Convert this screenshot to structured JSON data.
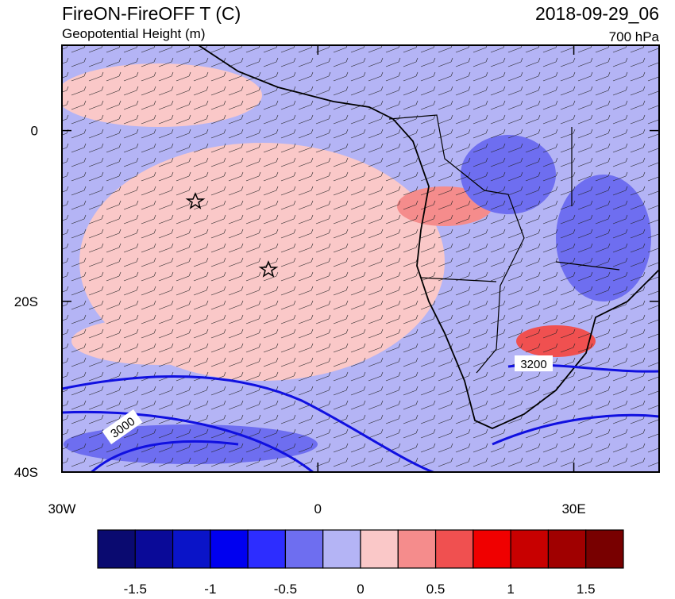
{
  "title": "FireON-FireOFF T (C)",
  "subtitle": "Geopotential Height (m)",
  "valid_time": "2018-09-29_06",
  "level": "700 hPa",
  "map": {
    "lonlim": [
      -30,
      40
    ],
    "latlim": [
      -40,
      10
    ],
    "xticks": [
      {
        "value": -30,
        "label": "30W"
      },
      0,
      {
        "value": 30,
        "label": "30E"
      }
    ],
    "yticks": [
      0,
      {
        "value": -20,
        "label": "20S"
      },
      {
        "value": -40,
        "label": "40S"
      }
    ],
    "contour_labels": [
      "3000",
      "3200"
    ]
  },
  "colorbar": {
    "lim": [
      -1.75,
      1.75
    ],
    "colors": [
      "#0a0a70",
      "#0a0a98",
      "#0a14c8",
      "#0000f0",
      "#2d2dff",
      "#6e6ef0",
      "#b4b4f5",
      "#fac8c8",
      "#f58c8c",
      "#f05050",
      "#f00000",
      "#c80000",
      "#a00000",
      "#780000"
    ],
    "labels": [
      -1.5,
      -1,
      -0.5,
      0,
      0.5,
      1,
      1.5
    ]
  }
}
